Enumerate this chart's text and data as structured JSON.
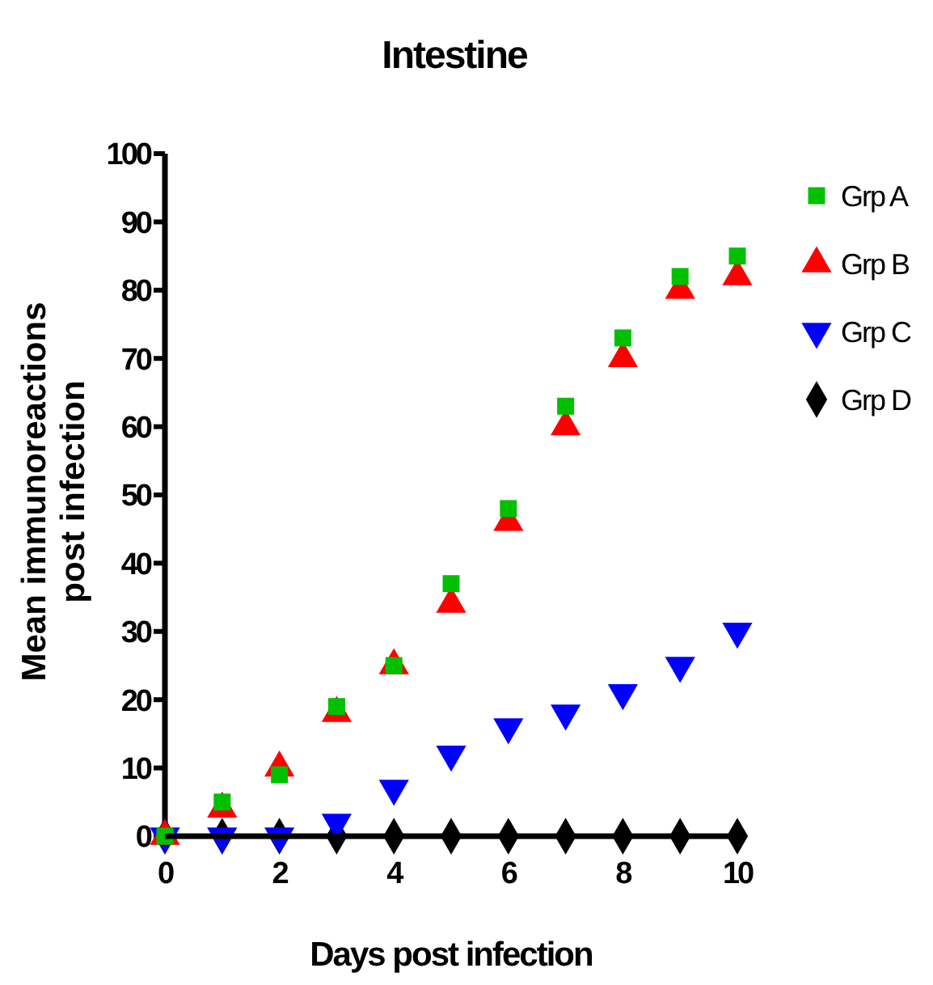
{
  "chart_data": {
    "type": "scatter",
    "title": "Intestine",
    "xlabel": "Days post infection",
    "ylabel": "Mean immunoreactions post infection",
    "x": [
      0,
      1,
      2,
      3,
      4,
      5,
      6,
      7,
      8,
      9,
      10
    ],
    "xlim": [
      0,
      10
    ],
    "xticks": [
      0,
      2,
      4,
      6,
      8,
      10
    ],
    "ylim": [
      0,
      100
    ],
    "yticks": [
      0,
      10,
      20,
      30,
      40,
      50,
      60,
      70,
      80,
      90,
      100
    ],
    "grid": false,
    "legend": "right",
    "series": [
      {
        "name": "Grp A",
        "color": "#00c000",
        "marker": "square",
        "values": [
          0,
          5,
          9,
          19,
          25,
          37,
          48,
          63,
          73,
          82,
          85
        ]
      },
      {
        "name": "Grp B",
        "color": "#ff0000",
        "marker": "triangle",
        "values": [
          0,
          4,
          10,
          18,
          25,
          34,
          46,
          60,
          70,
          80,
          82
        ]
      },
      {
        "name": "Grp C",
        "color": "#0000ff",
        "marker": "triangle-down",
        "values": [
          0,
          0,
          0,
          2,
          7,
          12,
          16,
          18,
          21,
          25,
          30
        ]
      },
      {
        "name": "Grp D",
        "color": "#000000",
        "marker": "diamond",
        "values": [
          0,
          0,
          0,
          0,
          0,
          0,
          0,
          0,
          0,
          0,
          0
        ]
      }
    ]
  }
}
